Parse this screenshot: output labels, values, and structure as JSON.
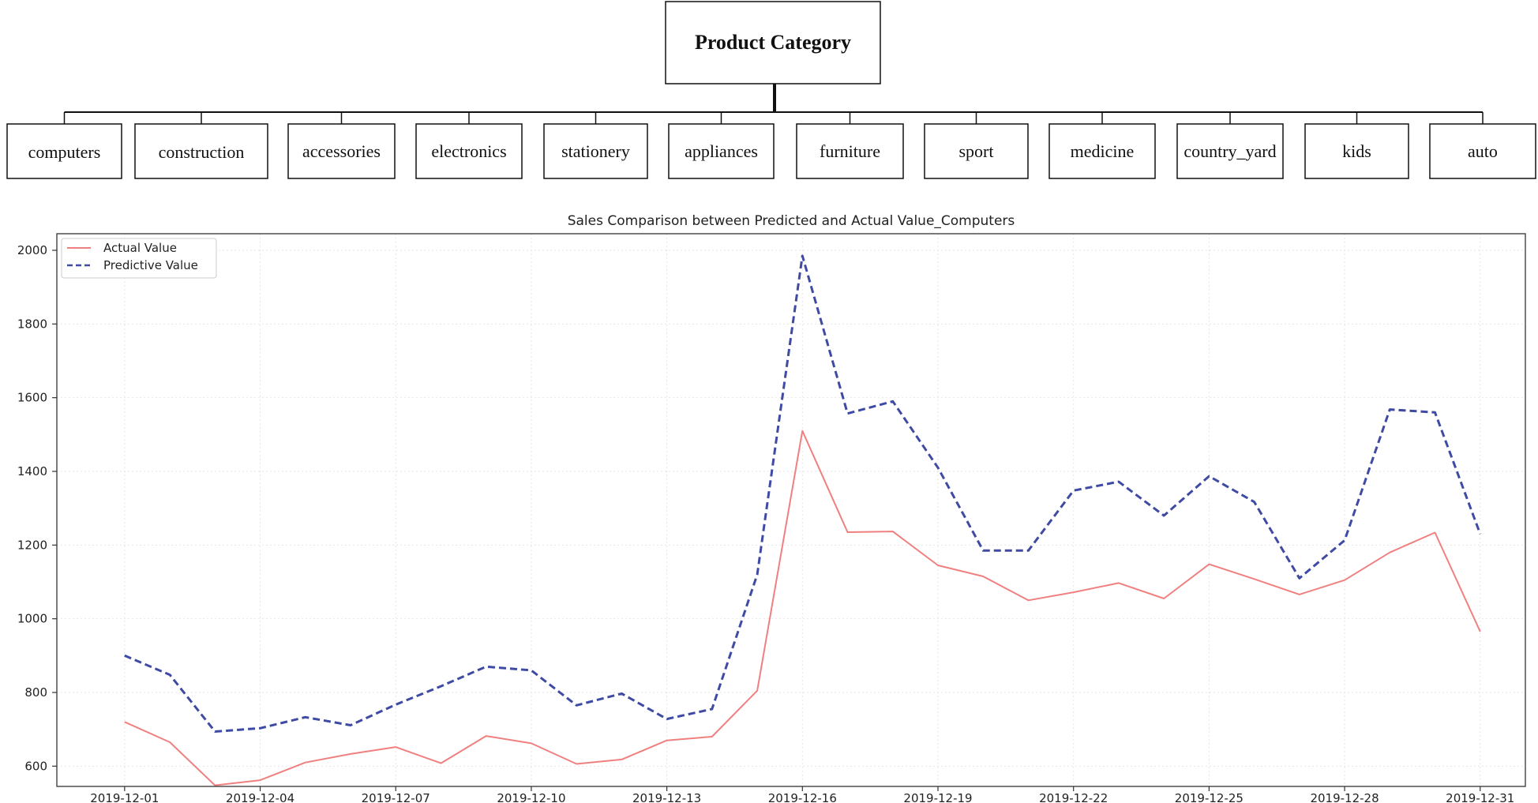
{
  "tree": {
    "root": "Product Category",
    "categories": [
      "computers",
      "construction",
      "accessories",
      "electronics",
      "stationery",
      "appliances",
      "furniture",
      "sport",
      "medicine",
      "country_yard",
      "kids",
      "auto"
    ]
  },
  "chart_data": {
    "type": "line",
    "title": "Sales Comparison between Predicted and Actual Value_Computers",
    "xlabel": "",
    "ylabel": "",
    "x": [
      "2019-12-01",
      "2019-12-02",
      "2019-12-03",
      "2019-12-04",
      "2019-12-05",
      "2019-12-06",
      "2019-12-07",
      "2019-12-08",
      "2019-12-09",
      "2019-12-10",
      "2019-12-11",
      "2019-12-12",
      "2019-12-13",
      "2019-12-14",
      "2019-12-15",
      "2019-12-16",
      "2019-12-17",
      "2019-12-18",
      "2019-12-19",
      "2019-12-20",
      "2019-12-21",
      "2019-12-22",
      "2019-12-23",
      "2019-12-24",
      "2019-12-25",
      "2019-12-26",
      "2019-12-27",
      "2019-12-28",
      "2019-12-29",
      "2019-12-30",
      "2019-12-31"
    ],
    "xticks": [
      "2019-12-01",
      "2019-12-04",
      "2019-12-07",
      "2019-12-10",
      "2019-12-13",
      "2019-12-16",
      "2019-12-19",
      "2019-12-22",
      "2019-12-25",
      "2019-12-28",
      "2019-12-31"
    ],
    "yticks": [
      600,
      800,
      1000,
      1200,
      1400,
      1600,
      1800,
      2000
    ],
    "ylim": [
      545,
      2045
    ],
    "xlim": [
      "2019-11-29.5",
      "2020-01-01"
    ],
    "grid": true,
    "legend_position": "upper-left",
    "series": [
      {
        "name": "Actual Value",
        "color": "#f08080",
        "style": "solid",
        "values": [
          720,
          665,
          548,
          562,
          610,
          633,
          652,
          608,
          682,
          662,
          606,
          618,
          670,
          680,
          805,
          1510,
          1235,
          1237,
          1145,
          1115,
          1050,
          1072,
          1097,
          1055,
          1148,
          1108,
          1066,
          1105,
          1180,
          1234,
          965
        ]
      },
      {
        "name": "Predictive Value",
        "color": "#3f4aa3",
        "style": "dashed",
        "values": [
          900,
          848,
          694,
          703,
          733,
          711,
          767,
          817,
          870,
          860,
          765,
          797,
          728,
          755,
          1120,
          1985,
          1557,
          1590,
          1410,
          1185,
          1185,
          1348,
          1372,
          1280,
          1387,
          1317,
          1110,
          1213,
          1568,
          1560,
          1230
        ]
      }
    ]
  }
}
